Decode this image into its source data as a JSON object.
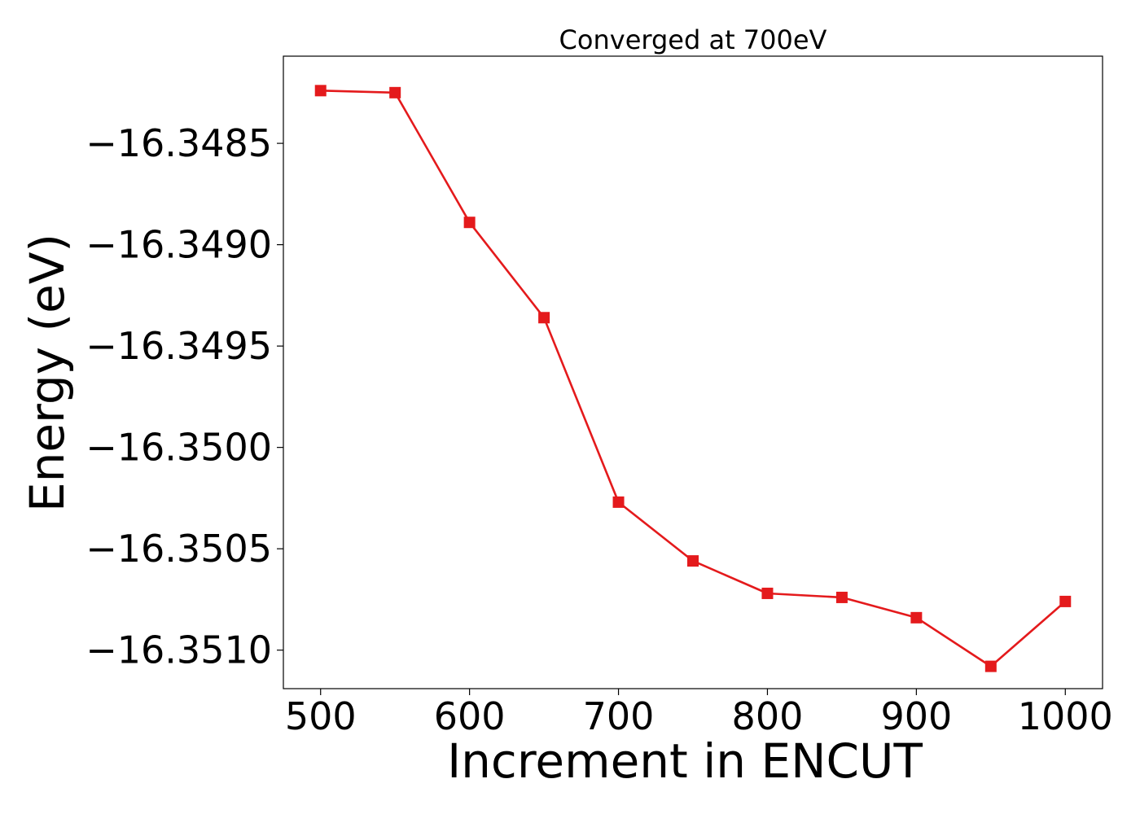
{
  "chart_data": {
    "type": "line",
    "title": "Converged at 700eV",
    "xlabel": "Increment in ENCUT",
    "ylabel": "Energy (eV)",
    "x": [
      500,
      550,
      600,
      650,
      700,
      750,
      800,
      850,
      900,
      950,
      1000
    ],
    "series": [
      {
        "name": "",
        "color": "#e41a1c",
        "marker": "square",
        "values": [
          -16.34824,
          -16.34825,
          -16.34889,
          -16.34936,
          -16.35027,
          -16.35056,
          -16.35072,
          -16.35074,
          -16.35084,
          -16.35108,
          -16.35076
        ]
      }
    ],
    "xticks": [
      500,
      600,
      700,
      800,
      900,
      1000
    ],
    "xtick_labels": [
      "500",
      "600",
      "700",
      "800",
      "900",
      "1000"
    ],
    "yticks": [
      -16.3485,
      -16.349,
      -16.3495,
      -16.35,
      -16.3505,
      -16.351
    ],
    "ytick_labels": [
      "−16.3485",
      "−16.3490",
      "−16.3495",
      "−16.3500",
      "−16.3505",
      "−16.3510"
    ],
    "xlim": [
      475,
      1025
    ],
    "ylim": [
      -16.35119,
      -16.34807
    ],
    "grid": false,
    "legend": "none"
  }
}
